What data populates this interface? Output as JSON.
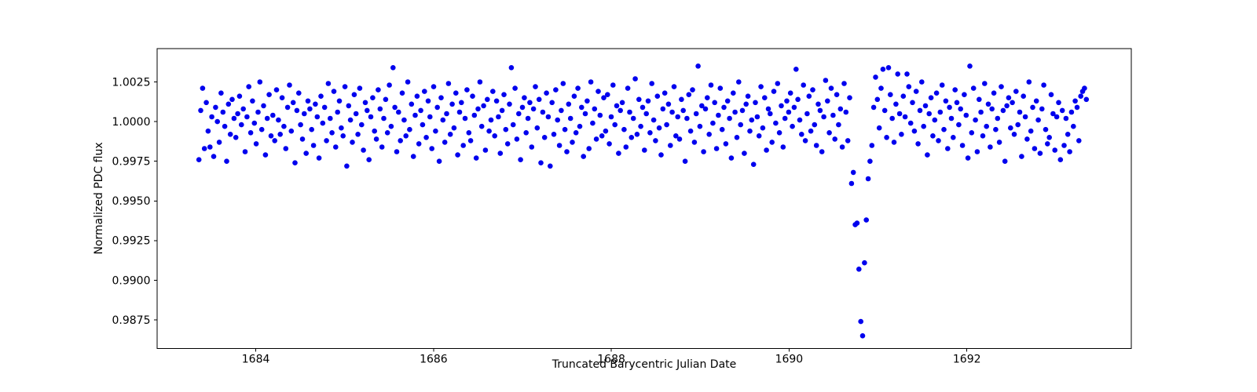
{
  "chart_data": {
    "type": "scatter",
    "title": "",
    "xlabel": "Truncated Barycentric Julian Date",
    "ylabel": "Normalized PDC flux",
    "legend": null,
    "grid": false,
    "marker_color": "#0000ee",
    "axis_color": "#000000",
    "background_color": "#ffffff",
    "xlim": [
      1682.89,
      1693.85
    ],
    "ylim": [
      0.9857,
      1.0046
    ],
    "x_ticks": [
      1684,
      1686,
      1688,
      1690,
      1692
    ],
    "x_tick_labels": [
      "1684",
      "1686",
      "1688",
      "1690",
      "1692"
    ],
    "y_ticks": [
      1.0025,
      1.0,
      0.9975,
      0.995,
      0.9925,
      0.99,
      0.9875
    ],
    "y_tick_labels": [
      "1.0025",
      "1.0000",
      "0.9975",
      "0.9950",
      "0.9925",
      "0.9900",
      "0.9875"
    ],
    "series": {
      "name": "PDC flux",
      "t_start": 1683.36,
      "t_step": 0.0208,
      "flux_base": 1.0,
      "flux_offset_scale": 0.0001,
      "transit_center_t": 1690.83,
      "transit_min_flux": 0.9865,
      "flux_offsets_1e4": [
        -24,
        7,
        21,
        -17,
        12,
        -6,
        -16,
        3,
        -22,
        9,
        0,
        -13,
        18,
        6,
        -3,
        -25,
        11,
        -8,
        14,
        2,
        -10,
        5,
        16,
        -2,
        8,
        -19,
        3,
        22,
        -7,
        13,
        -1,
        -14,
        6,
        25,
        -5,
        10,
        -21,
        2,
        17,
        -9,
        4,
        -12,
        20,
        1,
        -8,
        15,
        -3,
        -17,
        9,
        23,
        -6,
        12,
        -26,
        7,
        18,
        -2,
        -11,
        5,
        -20,
        13,
        8,
        -5,
        -15,
        11,
        3,
        -23,
        16,
        -1,
        9,
        -12,
        24,
        2,
        -7,
        19,
        -16,
        6,
        13,
        -4,
        -9,
        22,
        -28,
        10,
        1,
        -13,
        17,
        5,
        -8,
        21,
        -2,
        -18,
        12,
        7,
        -24,
        3,
        15,
        -6,
        -11,
        20,
        8,
        -16,
        2,
        14,
        -7,
        23,
        -3,
        34,
        9,
        -19,
        6,
        -12,
        18,
        1,
        -9,
        25,
        -5,
        11,
        -22,
        4,
        16,
        -14,
        7,
        -2,
        19,
        -10,
        13,
        3,
        -17,
        22,
        -6,
        9,
        -25,
        15,
        1,
        -13,
        5,
        24,
        -8,
        11,
        -4,
        18,
        -21,
        6,
        12,
        -15,
        2,
        20,
        -7,
        -12,
        16,
        4,
        -23,
        8,
        25,
        -3,
        10,
        -18,
        14,
        -6,
        1,
        19,
        -9,
        13,
        3,
        -20,
        7,
        17,
        -5,
        -14,
        11,
        34,
        -2,
        21,
        -11,
        5,
        -24,
        9,
        15,
        -7,
        2,
        12,
        -16,
        8,
        22,
        -4,
        14,
        -26,
        6,
        -10,
        18,
        3,
        -28,
        12,
        -8,
        20,
        1,
        -15,
        7,
        24,
        -5,
        -19,
        11,
        2,
        -13,
        16,
        -7,
        21,
        -3,
        9,
        -22,
        5,
        13,
        -17,
        25,
        -1,
        8,
        -11,
        19,
        4,
        -9,
        15,
        -6,
        17,
        -14,
        3,
        23,
        -2,
        10,
        -20,
        7,
        12,
        -5,
        -16,
        21,
        6,
        -10,
        2,
        27,
        -8,
        14,
        -3,
        9,
        -18,
        5,
        13,
        -7,
        24,
        1,
        -12,
        16,
        -4,
        -21,
        8,
        18,
        -2,
        11,
        -15,
        6,
        22,
        -9,
        3,
        -11,
        14,
        7,
        -25,
        2,
        17,
        -6,
        20,
        -13,
        5,
        35,
        -3,
        10,
        -19,
        8,
        15,
        -8,
        23,
        -1,
        12,
        -17,
        4,
        21,
        -5,
        9,
        -14,
        13,
        2,
        -23,
        18,
        6,
        -10,
        25,
        -2,
        7,
        -20,
        11,
        16,
        -6,
        1,
        -27,
        12,
        3,
        -9,
        22,
        -4,
        15,
        -18,
        8,
        5,
        -13,
        19,
        -1,
        24,
        -7,
        10,
        -16,
        2,
        13,
        6,
        18,
        -3,
        9,
        33,
        14,
        1,
        -8,
        23,
        -12,
        5,
        16,
        -6,
        20,
        -2,
        -15,
        11,
        7,
        -19,
        3,
        26,
        13,
        -7,
        21,
        4,
        -11,
        17,
        -2,
        8,
        -16,
        24,
        6,
        -12,
        15,
        -39,
        -32,
        -65,
        -64,
        -93,
        -126,
        -135,
        -89,
        -62,
        -36,
        -25,
        -15,
        9,
        28,
        14,
        -4,
        21,
        33,
        7,
        -10,
        34,
        17,
        2,
        -13,
        11,
        30,
        5,
        -8,
        16,
        3,
        30,
        22,
        -1,
        12,
        -6,
        19,
        -14,
        7,
        25,
        -3,
        10,
        -21,
        5,
        15,
        -9,
        1,
        18,
        -12,
        6,
        23,
        -5,
        13,
        -17,
        9,
        2,
        -10,
        20,
        12,
        -2,
        8,
        -15,
        17,
        4,
        -23,
        35,
        -7,
        21,
        1,
        -19,
        14,
        6,
        -9,
        24,
        -3,
        11,
        -16,
        8,
        18,
        -5,
        2,
        -13,
        22,
        7,
        -25,
        10,
        15,
        -4,
        12,
        -8,
        19,
        -2,
        6,
        -22,
        16,
        3,
        -11,
        25,
        -6,
        9,
        -17,
        13,
        1,
        -20,
        8,
        23,
        -5,
        -14,
        -10,
        17,
        5,
        -18,
        3,
        12,
        -24,
        7,
        -15,
        2,
        -8,
        -19,
        6,
        -3,
        13,
        9,
        -12,
        16,
        19,
        21,
        14
      ]
    }
  }
}
